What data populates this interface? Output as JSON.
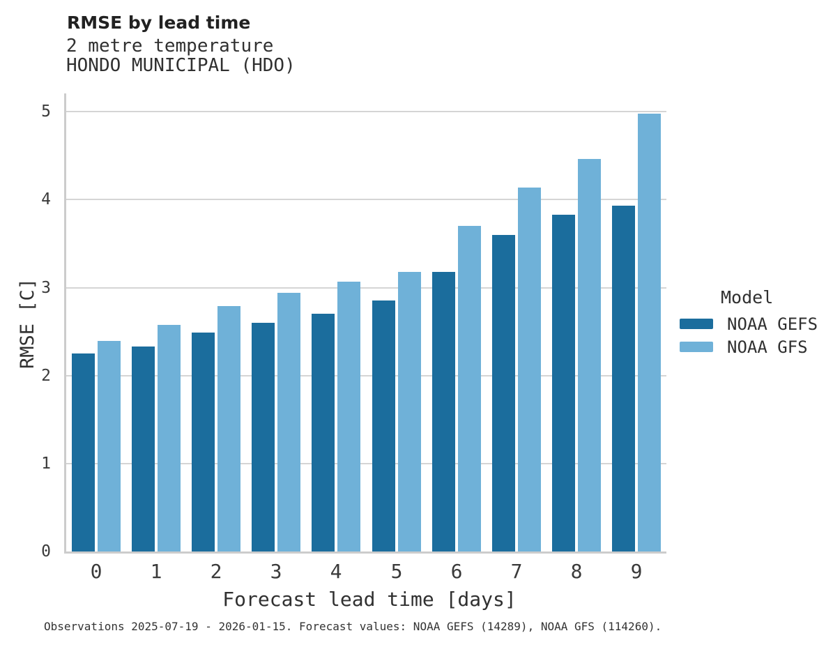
{
  "header": {
    "title": "RMSE by lead time",
    "subtitle_variable": "2 metre temperature",
    "subtitle_station": "HONDO MUNICIPAL (HDO)"
  },
  "chart_data": {
    "type": "bar",
    "title": "RMSE by lead time",
    "subtitle": [
      "2 metre temperature",
      "HONDO MUNICIPAL (HDO)"
    ],
    "categories": [
      "0",
      "1",
      "2",
      "3",
      "4",
      "5",
      "6",
      "7",
      "8",
      "9"
    ],
    "series": [
      {
        "name": "NOAA GEFS",
        "color": "#1b6d9d",
        "values": [
          2.25,
          2.33,
          2.49,
          2.6,
          2.7,
          2.85,
          3.18,
          3.6,
          3.83,
          3.93
        ]
      },
      {
        "name": "NOAA GFS",
        "color": "#6fb1d8",
        "values": [
          2.39,
          2.58,
          2.79,
          2.94,
          3.07,
          3.18,
          3.7,
          4.14,
          4.46,
          4.98
        ]
      }
    ],
    "xlabel": "Forecast lead time [days]",
    "ylabel": "RMSE [C]",
    "ylim": [
      0,
      5.2
    ],
    "yticks": [
      0,
      1,
      2,
      3,
      4,
      5
    ],
    "grid": "horizontal",
    "legend_title": "Model",
    "legend_position": "right"
  },
  "footer": {
    "note": "Observations 2025-07-19 - 2026-01-15. Forecast values: NOAA GEFS (14289), NOAA GFS (114260)."
  }
}
